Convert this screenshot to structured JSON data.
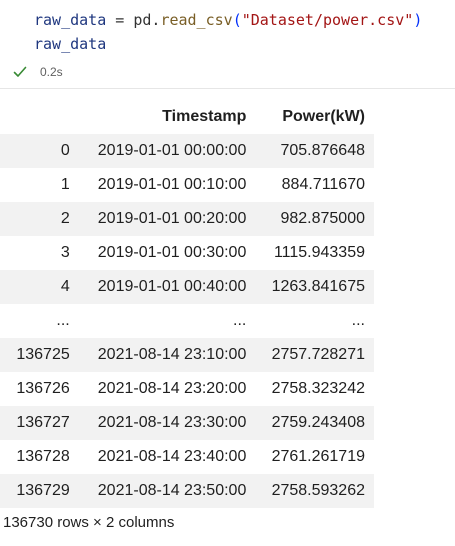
{
  "code": {
    "line1": {
      "var": "raw_data",
      "assign": " = ",
      "module": "pd.",
      "func": "read_csv",
      "open_paren": "(",
      "arg": "\"Dataset/power.csv\"",
      "close_paren": ")"
    },
    "line2": "raw_data"
  },
  "execution": {
    "status_icon": "check-icon",
    "time": "0.2s",
    "status_color": "#388a34"
  },
  "table": {
    "columns": [
      "",
      "Timestamp",
      "Power(kW)"
    ],
    "rows": [
      [
        "0",
        "2019-01-01 00:00:00",
        "705.876648"
      ],
      [
        "1",
        "2019-01-01 00:10:00",
        "884.711670"
      ],
      [
        "2",
        "2019-01-01 00:20:00",
        "982.875000"
      ],
      [
        "3",
        "2019-01-01 00:30:00",
        "1115.943359"
      ],
      [
        "4",
        "2019-01-01 00:40:00",
        "1263.841675"
      ],
      [
        "...",
        "...",
        "..."
      ],
      [
        "136725",
        "2021-08-14 23:10:00",
        "2757.728271"
      ],
      [
        "136726",
        "2021-08-14 23:20:00",
        "2758.323242"
      ],
      [
        "136727",
        "2021-08-14 23:30:00",
        "2759.243408"
      ],
      [
        "136728",
        "2021-08-14 23:40:00",
        "2761.261719"
      ],
      [
        "136729",
        "2021-08-14 23:50:00",
        "2758.593262"
      ]
    ]
  },
  "shape_info": "136730 rows × 2 columns"
}
